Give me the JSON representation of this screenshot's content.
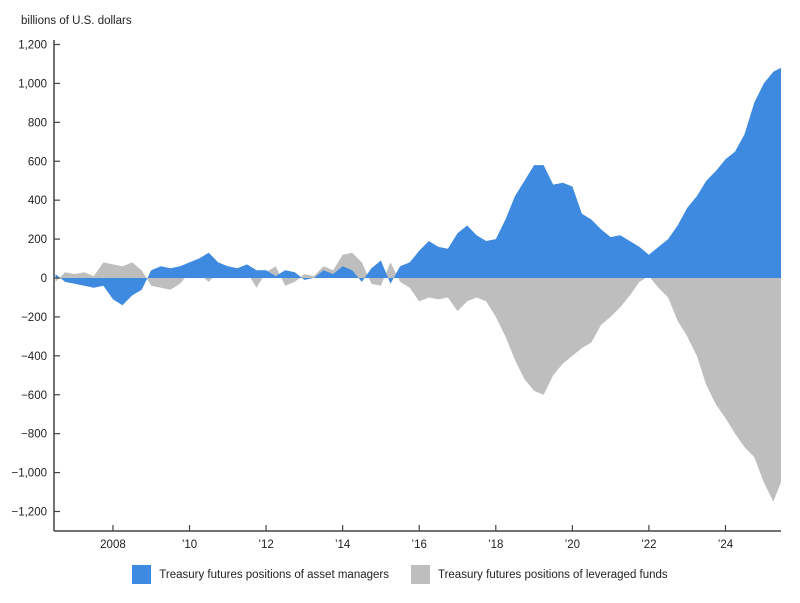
{
  "chart_data": {
    "type": "area",
    "title": "",
    "ylabel": "billions of U.S. dollars",
    "xlabel": "",
    "ylim": [
      -1300,
      1200
    ],
    "xlim": [
      2006.46,
      2025.45
    ],
    "y_ticks": [
      1200,
      1000,
      800,
      600,
      400,
      200,
      0,
      -200,
      -400,
      -600,
      -800,
      -1000,
      -1200
    ],
    "y_tick_labels": [
      "1,200",
      "1,000",
      "800",
      "600",
      "400",
      "200",
      "0",
      "−200",
      "−400",
      "−600",
      "−800",
      "−1,000",
      "−1,200"
    ],
    "x_ticks": [
      2008,
      2010,
      2012,
      2014,
      2016,
      2018,
      2020,
      2022,
      2024
    ],
    "x_tick_labels": [
      "2008",
      "’10",
      "’12",
      "’14",
      "’16",
      "’18",
      "’20",
      "’22",
      "’24"
    ],
    "grid": false,
    "legend_position": "bottom",
    "x": [
      2006.5,
      2006.75,
      2007.0,
      2007.25,
      2007.5,
      2007.75,
      2008.0,
      2008.25,
      2008.5,
      2008.75,
      2009.0,
      2009.25,
      2009.5,
      2009.75,
      2010.0,
      2010.25,
      2010.5,
      2010.75,
      2011.0,
      2011.25,
      2011.5,
      2011.75,
      2012.0,
      2012.25,
      2012.5,
      2012.75,
      2013.0,
      2013.25,
      2013.5,
      2013.75,
      2014.0,
      2014.25,
      2014.5,
      2014.75,
      2015.0,
      2015.25,
      2015.5,
      2015.75,
      2016.0,
      2016.25,
      2016.5,
      2016.75,
      2017.0,
      2017.25,
      2017.5,
      2017.75,
      2018.0,
      2018.25,
      2018.5,
      2018.75,
      2019.0,
      2019.25,
      2019.5,
      2019.75,
      2020.0,
      2020.25,
      2020.5,
      2020.75,
      2021.0,
      2021.25,
      2021.5,
      2021.75,
      2022.0,
      2022.25,
      2022.5,
      2022.75,
      2023.0,
      2023.25,
      2023.5,
      2023.75,
      2024.0,
      2024.25,
      2024.5,
      2024.75,
      2025.0,
      2025.25,
      2025.45
    ],
    "series": [
      {
        "name": "Treasury futures positions of asset managers",
        "color": "#3D8AE0",
        "values": [
          20,
          -20,
          -30,
          -40,
          -50,
          -40,
          -110,
          -140,
          -90,
          -60,
          40,
          60,
          50,
          60,
          80,
          100,
          130,
          80,
          60,
          50,
          70,
          40,
          40,
          10,
          40,
          30,
          -10,
          0,
          40,
          20,
          60,
          40,
          -20,
          50,
          90,
          -30,
          60,
          80,
          140,
          190,
          160,
          150,
          230,
          270,
          220,
          190,
          200,
          300,
          420,
          500,
          580,
          580,
          480,
          490,
          470,
          330,
          300,
          250,
          210,
          220,
          190,
          160,
          120,
          160,
          200,
          270,
          360,
          420,
          500,
          550,
          610,
          650,
          740,
          900,
          1000,
          1060,
          1080
        ]
      },
      {
        "name": "Treasury futures positions of leveraged funds",
        "color": "#BFBEBF",
        "values": [
          -20,
          30,
          20,
          30,
          10,
          80,
          70,
          60,
          80,
          40,
          -40,
          -50,
          -60,
          -30,
          30,
          20,
          -20,
          30,
          40,
          10,
          30,
          -50,
          30,
          60,
          -40,
          -20,
          20,
          10,
          60,
          40,
          120,
          130,
          80,
          -30,
          -40,
          80,
          -20,
          -50,
          -120,
          -100,
          -110,
          -100,
          -170,
          -120,
          -100,
          -120,
          -200,
          -300,
          -420,
          -520,
          -580,
          -600,
          -500,
          -440,
          -400,
          -360,
          -330,
          -240,
          -200,
          -150,
          -90,
          -20,
          10,
          -50,
          -100,
          -220,
          -300,
          -400,
          -550,
          -650,
          -720,
          -800,
          -870,
          -920,
          -1050,
          -1150,
          -1050
        ]
      }
    ]
  },
  "header": {
    "unit_label": "billions of U.S. dollars"
  },
  "legend": {
    "items": [
      {
        "label": "Treasury futures positions of asset managers",
        "color": "#3D8AE0"
      },
      {
        "label": "Treasury futures positions of leveraged funds",
        "color": "#BFBEBF"
      }
    ]
  }
}
